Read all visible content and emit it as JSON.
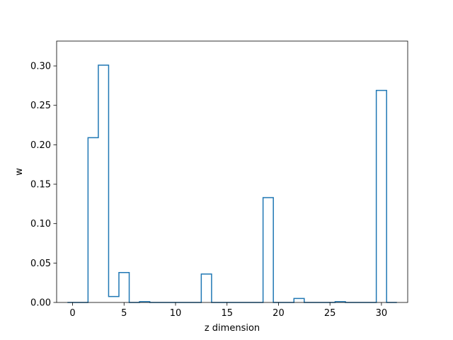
{
  "chart_data": {
    "type": "step",
    "title": "",
    "xlabel": "z dimension",
    "ylabel": "w",
    "xlim": [
      -1.55,
      32.55
    ],
    "ylim": [
      0.0,
      0.3315
    ],
    "xticks": [
      0,
      5,
      10,
      15,
      20,
      25,
      30
    ],
    "xtick_labels": [
      "0",
      "5",
      "10",
      "15",
      "20",
      "25",
      "30"
    ],
    "yticks": [
      0.0,
      0.05,
      0.1,
      0.15,
      0.2,
      0.25,
      0.3
    ],
    "ytick_labels": [
      "0.00",
      "0.05",
      "0.10",
      "0.15",
      "0.20",
      "0.25",
      "0.30"
    ],
    "grid": false,
    "line_color": "#1f77b4",
    "series": [
      {
        "x": [
          0,
          1,
          2,
          3,
          4,
          5,
          6,
          7,
          8,
          9,
          10,
          11,
          12,
          13,
          14,
          15,
          16,
          17,
          18,
          19,
          20,
          21,
          22,
          23,
          24,
          25,
          26,
          27,
          28,
          29,
          30,
          31
        ],
        "values": [
          0.0,
          0.0,
          0.209,
          0.301,
          0.0075,
          0.038,
          0.0,
          0.001,
          0.0,
          0.0,
          0.0,
          0.0,
          0.0,
          0.036,
          0.0,
          0.0,
          0.0,
          0.0,
          0.0,
          0.133,
          0.0,
          0.0,
          0.005,
          0.0,
          0.0,
          0.0,
          0.001,
          0.0,
          0.0,
          0.0,
          0.269,
          0.0
        ]
      }
    ]
  }
}
